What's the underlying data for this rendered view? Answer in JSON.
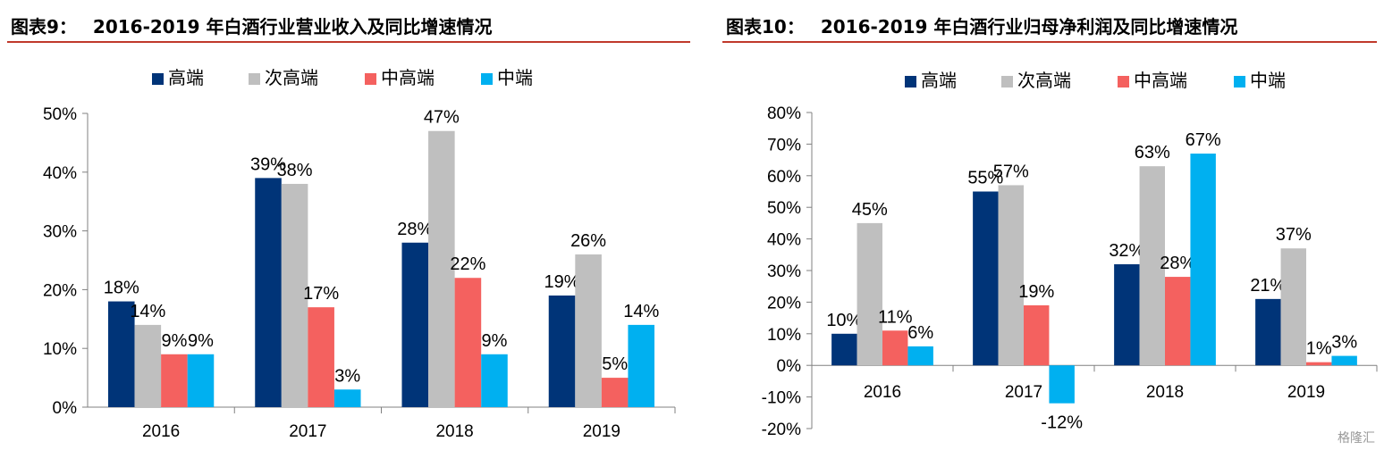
{
  "charts": [
    {
      "fig_label": "图表9：",
      "title": "2016-2019 年白酒行业营业收入及同比增速情况",
      "chart_data": {
        "type": "bar",
        "categories": [
          "2016",
          "2017",
          "2018",
          "2019"
        ],
        "series": [
          {
            "name": "高端",
            "color": "#003478",
            "values": [
              18,
              39,
              28,
              19
            ],
            "labels": [
              "18%",
              "39%",
              "28%",
              "19%"
            ]
          },
          {
            "name": "次高端",
            "color": "#bfbfbf",
            "values": [
              14,
              38,
              47,
              26
            ],
            "labels": [
              "14%",
              "38%",
              "47%",
              "26%"
            ]
          },
          {
            "name": "中高端",
            "color": "#f4615f",
            "values": [
              9,
              17,
              22,
              5
            ],
            "labels": [
              "9%",
              "17%",
              "22%",
              "5%"
            ]
          },
          {
            "name": "中端",
            "color": "#00b0f0",
            "values": [
              9,
              3,
              9,
              14
            ],
            "labels": [
              "9%",
              "3%",
              "9%",
              "14%"
            ]
          }
        ],
        "yticks": [
          "0%",
          "10%",
          "20%",
          "30%",
          "40%",
          "50%"
        ],
        "ylim": [
          0,
          50
        ],
        "ystep": 10,
        "legend": "top",
        "grid": false
      }
    },
    {
      "fig_label": "图表10：",
      "title": "2016-2019 年白酒行业归母净利润及同比增速情况",
      "chart_data": {
        "type": "bar",
        "categories": [
          "2016",
          "2017",
          "2018",
          "2019"
        ],
        "series": [
          {
            "name": "高端",
            "color": "#003478",
            "values": [
              10,
              55,
              32,
              21
            ],
            "labels": [
              "10%",
              "55%",
              "32%",
              "21%"
            ]
          },
          {
            "name": "次高端",
            "color": "#bfbfbf",
            "values": [
              45,
              57,
              63,
              37
            ],
            "labels": [
              "45%",
              "57%",
              "63%",
              "37%"
            ]
          },
          {
            "name": "中高端",
            "color": "#f4615f",
            "values": [
              11,
              19,
              28,
              1
            ],
            "labels": [
              "11%",
              "19%",
              "28%",
              "1%"
            ]
          },
          {
            "name": "中端",
            "color": "#00b0f0",
            "values": [
              6,
              -12,
              67,
              3
            ],
            "labels": [
              "6%",
              "-12%",
              "67%",
              "3%"
            ]
          }
        ],
        "yticks": [
          "-20%",
          "-10%",
          "0%",
          "10%",
          "20%",
          "30%",
          "40%",
          "50%",
          "60%",
          "70%",
          "80%"
        ],
        "ylim": [
          -20,
          80
        ],
        "ystep": 10,
        "legend": "top",
        "grid": false
      }
    }
  ],
  "watermark": "格隆汇"
}
